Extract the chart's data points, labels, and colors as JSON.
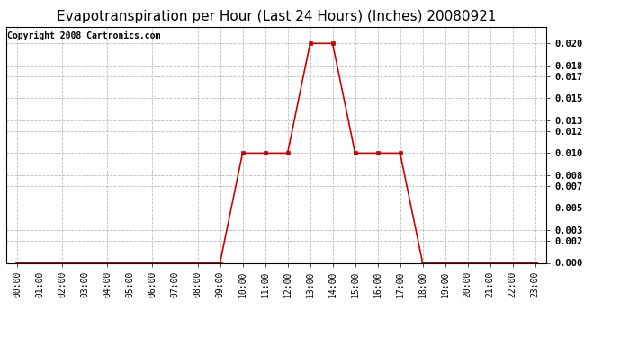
{
  "title": "Evapotranspiration per Hour (Last 24 Hours) (Inches) 20080921",
  "copyright": "Copyright 2008 Cartronics.com",
  "hours": [
    "00:00",
    "01:00",
    "02:00",
    "03:00",
    "04:00",
    "05:00",
    "06:00",
    "07:00",
    "08:00",
    "09:00",
    "10:00",
    "11:00",
    "12:00",
    "13:00",
    "14:00",
    "15:00",
    "16:00",
    "17:00",
    "18:00",
    "19:00",
    "20:00",
    "21:00",
    "22:00",
    "23:00"
  ],
  "values": [
    0.0,
    0.0,
    0.0,
    0.0,
    0.0,
    0.0,
    0.0,
    0.0,
    0.0,
    0.0,
    0.01,
    0.01,
    0.01,
    0.02,
    0.02,
    0.01,
    0.01,
    0.01,
    0.0,
    0.0,
    0.0,
    0.0,
    0.0,
    0.0
  ],
  "yticks": [
    0.0,
    0.002,
    0.003,
    0.005,
    0.007,
    0.008,
    0.01,
    0.012,
    0.013,
    0.015,
    0.017,
    0.018,
    0.02
  ],
  "ylim": [
    0.0,
    0.0215
  ],
  "line_color": "#cc0000",
  "marker_color": "#cc0000",
  "grid_color": "#bbbbbb",
  "bg_color": "#ffffff",
  "title_fontsize": 11,
  "copyright_fontsize": 7,
  "tick_fontsize": 7,
  "ytick_fontsize": 7.5
}
